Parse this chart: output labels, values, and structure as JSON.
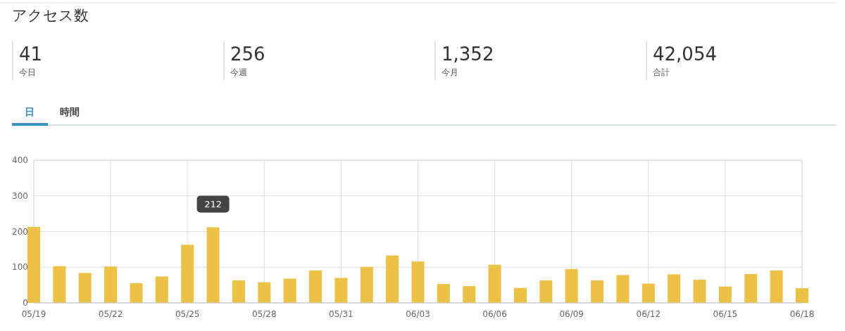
{
  "chart_data": [
    {
      "type": "other",
      "title": "アクセス数",
      "annotations": [
        "41",
        "今日",
        "256",
        "今週",
        "1,352",
        "今月",
        "42,054",
        "合計",
        "日",
        "時間"
      ]
    },
    {
      "type": "bar",
      "categories": [
        "05/19",
        null,
        null,
        "05/22",
        null,
        null,
        "05/25",
        null,
        null,
        "05/28",
        null,
        null,
        "05/31",
        null,
        null,
        "06/03",
        null,
        null,
        "06/06",
        null,
        null,
        "06/09",
        null,
        null,
        "06/12",
        null,
        null,
        "06/15",
        null,
        null,
        "06/18"
      ],
      "values": [
        213,
        103,
        84,
        102,
        55,
        74,
        163,
        212,
        63,
        58,
        68,
        91,
        70,
        101,
        133,
        116,
        53,
        47,
        107,
        42,
        63,
        95,
        63,
        78,
        54,
        80,
        65,
        46,
        81,
        91,
        41
      ],
      "color": "#ebc146",
      "ylim": [
        0,
        400
      ],
      "yticks": [
        0,
        100,
        200,
        300,
        400
      ],
      "grid": true,
      "annotations": [
        {
          "text": "212",
          "y": 212
        }
      ]
    }
  ]
}
